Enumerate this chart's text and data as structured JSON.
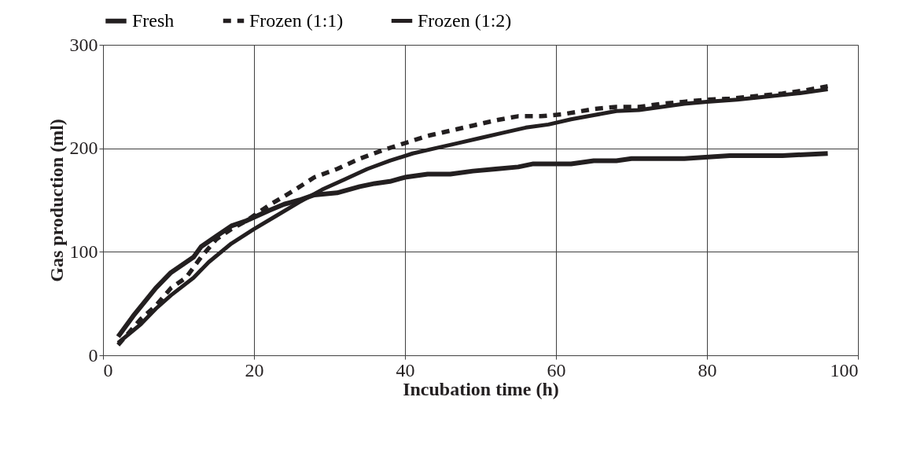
{
  "chart_data": {
    "type": "line",
    "xlabel": "Incubation time (h)",
    "ylabel": "Gas production (ml)",
    "xlim": [
      0,
      100
    ],
    "xticks": [
      0,
      20,
      40,
      60,
      80,
      100
    ],
    "ylim": [
      0,
      300
    ],
    "yticks": [
      0,
      100,
      200,
      300
    ],
    "grid": true,
    "legend": "top",
    "marker": "none",
    "series": [
      {
        "name": "Fresh",
        "color": "#231f20",
        "line_style": "solid",
        "x": [
          2,
          4,
          7,
          9,
          12,
          13,
          15,
          17,
          19,
          22,
          24,
          26,
          28,
          31,
          34,
          36,
          38,
          40,
          43,
          46,
          49,
          52,
          55,
          57,
          62,
          65,
          68,
          70,
          77,
          83,
          90,
          96
        ],
        "values": [
          18,
          38,
          65,
          80,
          95,
          105,
          115,
          125,
          130,
          140,
          146,
          150,
          155,
          157,
          163,
          166,
          168,
          172,
          175,
          175,
          178,
          180,
          182,
          185,
          185,
          188,
          188,
          190,
          190,
          193,
          193,
          195
        ]
      },
      {
        "name": "Frozen (1:1)",
        "color": "#231f20",
        "line_style": "dashed",
        "x": [
          2,
          5,
          7,
          9,
          11,
          13,
          15,
          17,
          19,
          22,
          25,
          28,
          31,
          34,
          37,
          40,
          43,
          46,
          49,
          52,
          55,
          58,
          61,
          65,
          68,
          71,
          74,
          77,
          80,
          83,
          86,
          90,
          93,
          96
        ],
        "values": [
          10,
          35,
          48,
          65,
          75,
          95,
          112,
          122,
          130,
          145,
          158,
          172,
          180,
          190,
          198,
          205,
          212,
          217,
          222,
          227,
          231,
          231,
          233,
          238,
          240,
          240,
          243,
          245,
          247,
          248,
          250,
          253,
          256,
          260
        ]
      },
      {
        "name": "Frozen (1:2)",
        "color": "#231f20",
        "line_style": "solid",
        "x": [
          2,
          5,
          7,
          9,
          12,
          14,
          17,
          20,
          23,
          26,
          29,
          32,
          35,
          38,
          41,
          44,
          47,
          50,
          53,
          56,
          59,
          62,
          65,
          68,
          71,
          74,
          77,
          80,
          84,
          88,
          92,
          96
        ],
        "values": [
          12,
          30,
          45,
          58,
          75,
          90,
          108,
          122,
          135,
          148,
          160,
          170,
          180,
          188,
          195,
          200,
          205,
          210,
          215,
          220,
          223,
          228,
          232,
          236,
          237,
          240,
          243,
          245,
          247,
          250,
          253,
          257
        ]
      }
    ]
  }
}
